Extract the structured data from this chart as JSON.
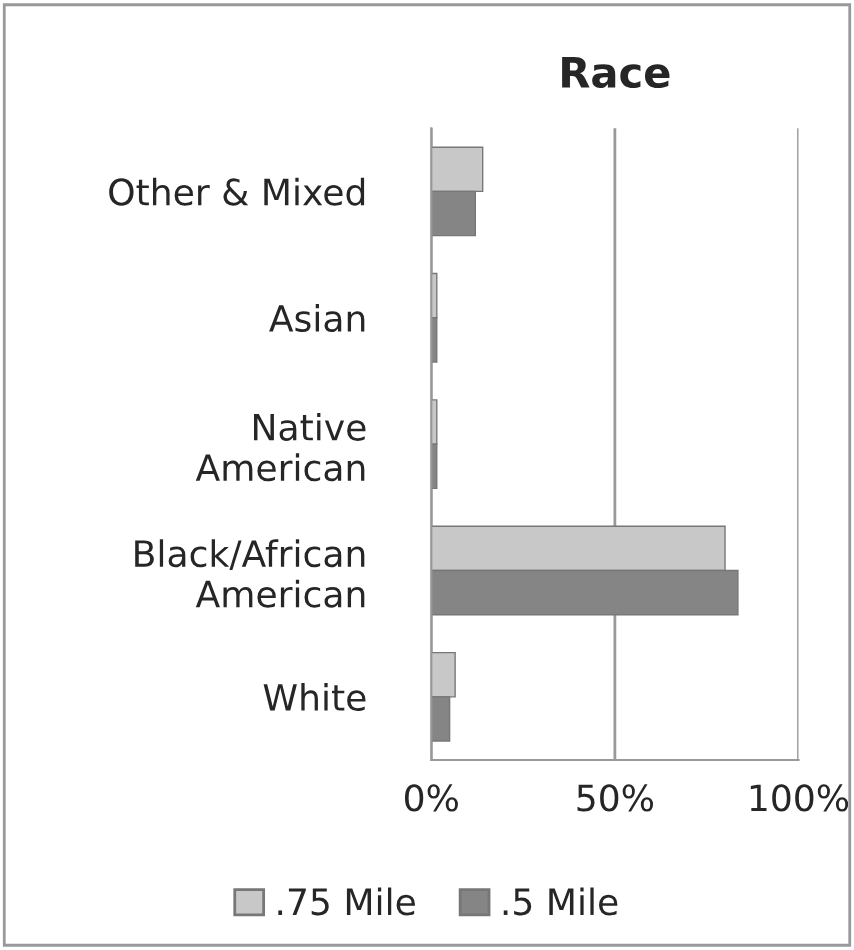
{
  "chart_data": {
    "type": "bar",
    "orientation": "horizontal",
    "title": "Race",
    "categories": [
      "Other & Mixed",
      "Asian",
      "Native American",
      "Black/African American",
      "White"
    ],
    "series": [
      {
        "name": ".75 Mile",
        "color": "#c8c8c8",
        "values": [
          14,
          1.5,
          1.5,
          80,
          6.5
        ]
      },
      {
        "name": ".5 Mile",
        "color": "#858585",
        "values": [
          12,
          1.5,
          1.5,
          83.5,
          5
        ]
      }
    ],
    "xlim": [
      0,
      100
    ],
    "xticks": [
      {
        "value": 0,
        "label": "0%"
      },
      {
        "value": 50,
        "label": "50%"
      },
      {
        "value": 100,
        "label": "100%"
      }
    ],
    "grid": "x",
    "legend": "bottom"
  }
}
